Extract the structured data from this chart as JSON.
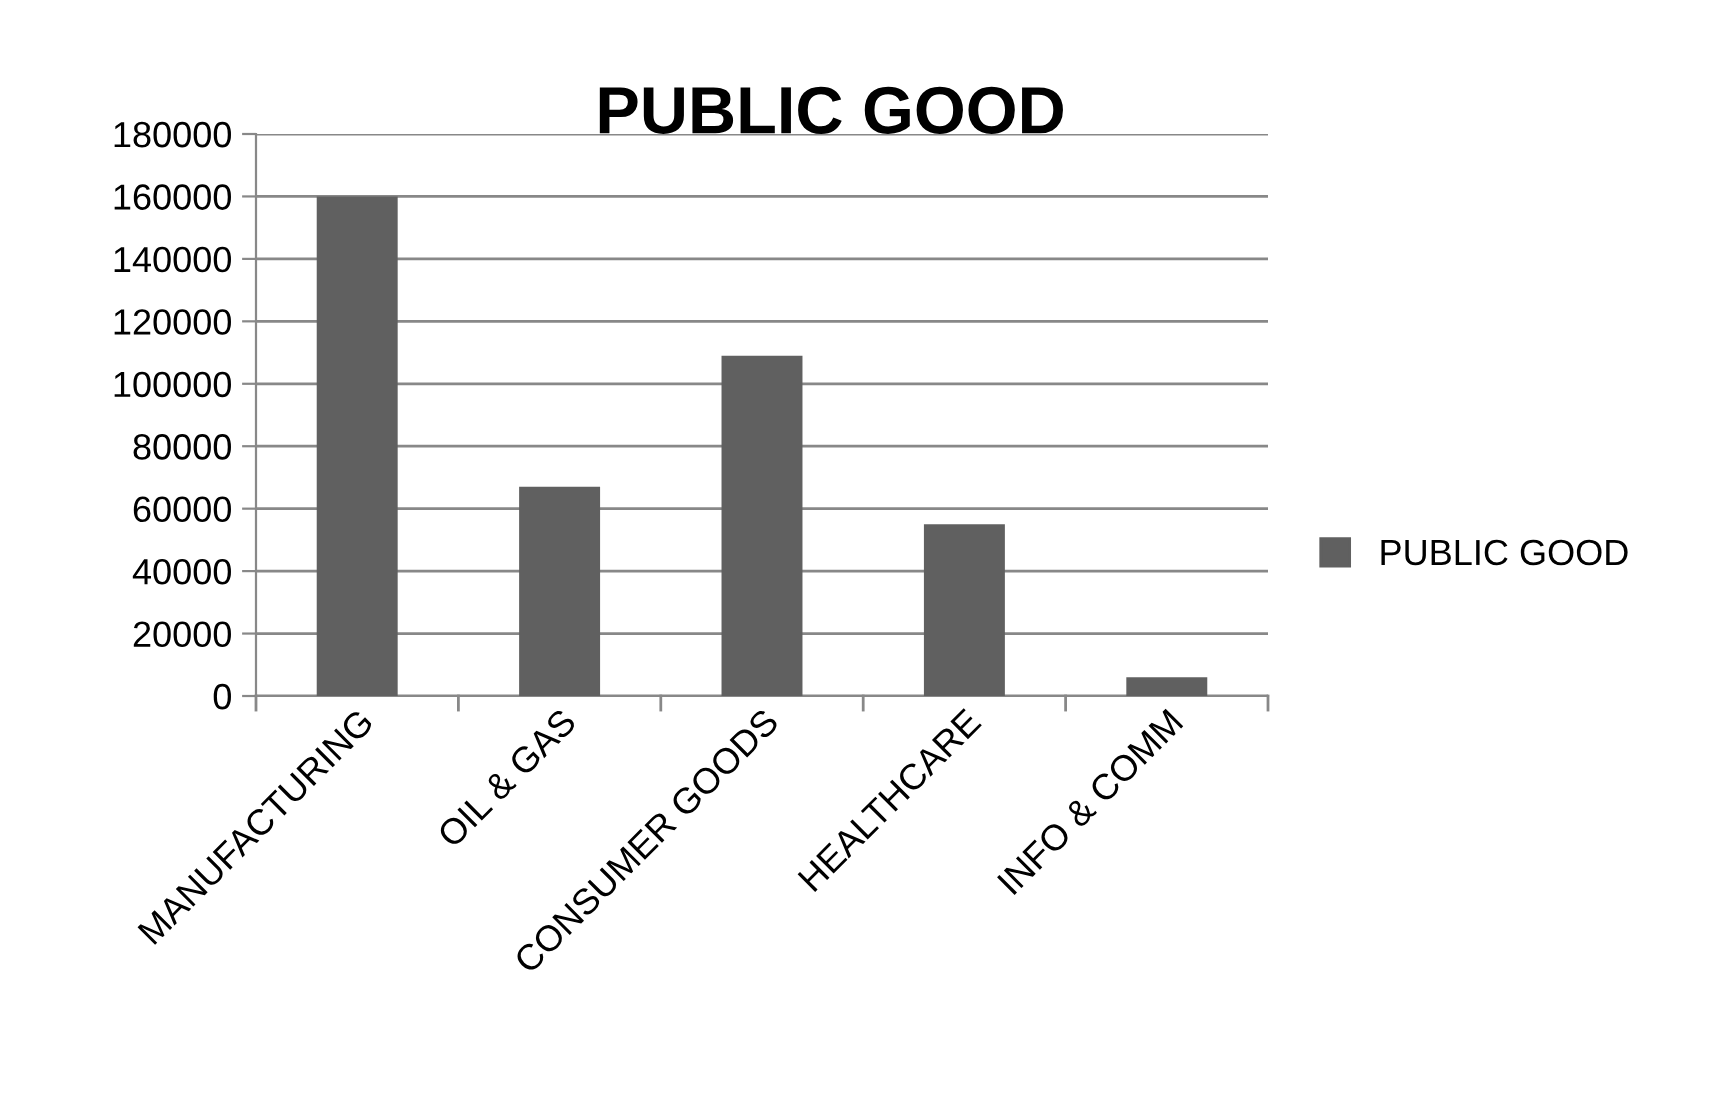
{
  "chart_data": {
    "type": "bar",
    "title": "PUBLIC GOOD",
    "categories": [
      "MANUFACTURING",
      "OIL & GAS",
      "CONSUMER GOODS",
      "HEALTHCARE",
      "INFO & COMM"
    ],
    "series": [
      {
        "name": "PUBLIC GOOD",
        "color": "#606060",
        "values": [
          160000,
          67000,
          109000,
          55000,
          6000
        ]
      }
    ],
    "ylim": [
      0,
      180000
    ],
    "yticks": [
      0,
      20000,
      40000,
      60000,
      80000,
      100000,
      120000,
      140000,
      160000,
      180000
    ],
    "grid": "y",
    "legend": "right"
  }
}
